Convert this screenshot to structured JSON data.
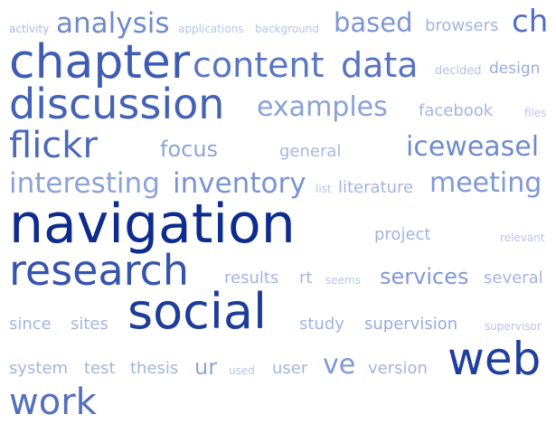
{
  "tags": [
    {
      "text": "activity",
      "color": "#a9b9e3"
    },
    {
      "text": "analysis",
      "color": "#6f8bcd"
    },
    {
      "text": "applications",
      "color": "#b6c4ea"
    },
    {
      "text": "background",
      "color": "#b6c4ea"
    },
    {
      "text": "based",
      "color": "#7d96d3"
    },
    {
      "text": "browsers",
      "color": "#a3b4e1"
    },
    {
      "text": "ch",
      "color": "#5370bd"
    },
    {
      "text": "chapter",
      "color": "#3f5cb2"
    },
    {
      "text": "content",
      "color": "#5a76c1"
    },
    {
      "text": "data",
      "color": "#5874c0"
    },
    {
      "text": "decided",
      "color": "#b2c1e8"
    },
    {
      "text": "design",
      "color": "#98abdd"
    },
    {
      "text": "discussion",
      "color": "#4461b4"
    },
    {
      "text": "examples",
      "color": "#8aa1d8"
    },
    {
      "text": "facebook",
      "color": "#a3b4e1"
    },
    {
      "text": "files",
      "color": "#b6c4ea"
    },
    {
      "text": "flickr",
      "color": "#4c69b9"
    },
    {
      "text": "focus",
      "color": "#8ea4d9"
    },
    {
      "text": "general",
      "color": "#a7b7e2"
    },
    {
      "text": "iceweasel",
      "color": "#6f8bcd"
    },
    {
      "text": "interesting",
      "color": "#8ba2d8"
    },
    {
      "text": "inventory",
      "color": "#7a93d1"
    },
    {
      "text": "list",
      "color": "#b6c4ea"
    },
    {
      "text": "literature",
      "color": "#a3b4e1"
    },
    {
      "text": "meeting",
      "color": "#7f98d4"
    },
    {
      "text": "navigation",
      "color": "#0e2b8e"
    },
    {
      "text": "project",
      "color": "#a3b4e1"
    },
    {
      "text": "relevant",
      "color": "#b6c4ea"
    },
    {
      "text": "research",
      "color": "#3654ad"
    },
    {
      "text": "results",
      "color": "#a3b4e1"
    },
    {
      "text": "rt",
      "color": "#a3b4e1"
    },
    {
      "text": "seems",
      "color": "#b6c4ea"
    },
    {
      "text": "services",
      "color": "#7f98d4"
    },
    {
      "text": "several",
      "color": "#a3b4e1"
    },
    {
      "text": "since",
      "color": "#a3b4e1"
    },
    {
      "text": "sites",
      "color": "#a3b4e1"
    },
    {
      "text": "social",
      "color": "#1f3c99"
    },
    {
      "text": "study",
      "color": "#a3b4e1"
    },
    {
      "text": "supervision",
      "color": "#98abdd"
    },
    {
      "text": "supervisor",
      "color": "#b6c4ea"
    },
    {
      "text": "system",
      "color": "#a3b4e1"
    },
    {
      "text": "test",
      "color": "#a3b4e1"
    },
    {
      "text": "thesis",
      "color": "#a3b4e1"
    },
    {
      "text": "ur",
      "color": "#8ea4d9"
    },
    {
      "text": "used",
      "color": "#b6c4ea"
    },
    {
      "text": "user",
      "color": "#a3b4e1"
    },
    {
      "text": "ve",
      "color": "#7f98d4"
    },
    {
      "text": "version",
      "color": "#a3b4e1"
    },
    {
      "text": "web",
      "color": "#1f3e9e"
    },
    {
      "text": "work",
      "color": "#5370bd"
    }
  ]
}
